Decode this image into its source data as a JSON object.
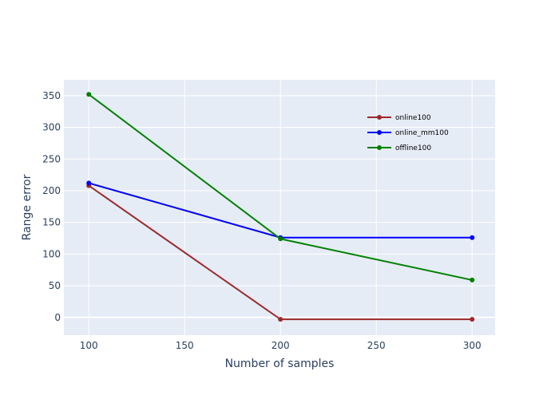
{
  "chart_data": {
    "type": "line",
    "xlabel": "Number of samples",
    "ylabel": "Range error",
    "x": [
      100,
      200,
      300
    ],
    "xlim": [
      87,
      312
    ],
    "ylim": [
      -28,
      375
    ],
    "x_ticks": [
      100,
      150,
      200,
      250,
      300
    ],
    "y_ticks": [
      0,
      50,
      100,
      150,
      200,
      250,
      300,
      350
    ],
    "grid": true,
    "legend_position": "top-right",
    "series": [
      {
        "name": "online100",
        "color": "#9b2a2a",
        "values": [
          208,
          -3,
          -3
        ]
      },
      {
        "name": "online_mm100",
        "color": "#0000ff",
        "values": [
          212,
          126,
          126
        ]
      },
      {
        "name": "offline100",
        "color": "#008000",
        "values": [
          352,
          124,
          59
        ]
      }
    ]
  },
  "colors": {
    "plot_background": "#e5ecf6",
    "grid": "#ffffff",
    "text": "#2a3f5f"
  }
}
